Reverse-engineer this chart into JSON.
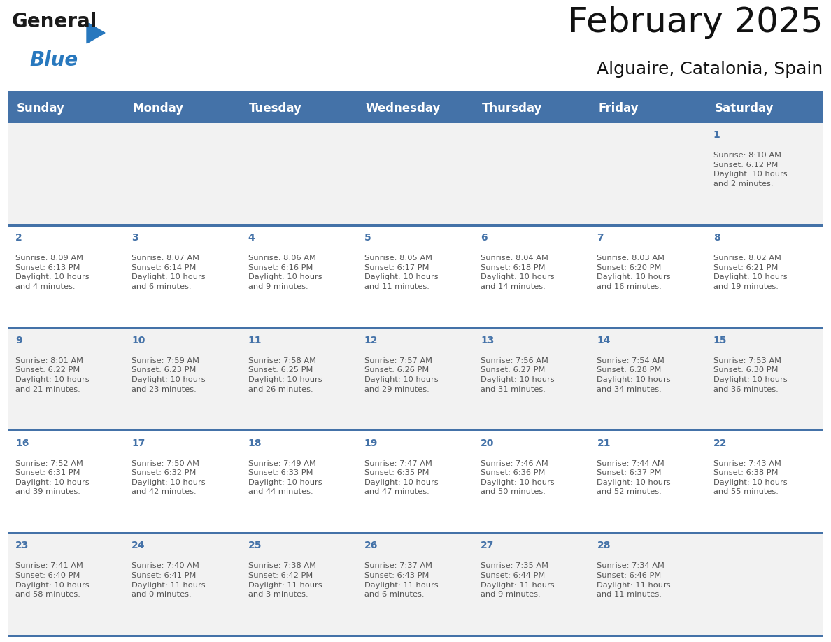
{
  "title": "February 2025",
  "subtitle": "Alguaire, Catalonia, Spain",
  "header_bg": "#4472A8",
  "header_text_color": "#FFFFFF",
  "cell_bg_odd": "#F2F2F2",
  "cell_bg_even": "#FFFFFF",
  "day_number_color": "#4472A8",
  "info_text_color": "#555555",
  "separator_color": "#4472A8",
  "days_of_week": [
    "Sunday",
    "Monday",
    "Tuesday",
    "Wednesday",
    "Thursday",
    "Friday",
    "Saturday"
  ],
  "weeks": [
    [
      {
        "day": "",
        "info": ""
      },
      {
        "day": "",
        "info": ""
      },
      {
        "day": "",
        "info": ""
      },
      {
        "day": "",
        "info": ""
      },
      {
        "day": "",
        "info": ""
      },
      {
        "day": "",
        "info": ""
      },
      {
        "day": "1",
        "info": "Sunrise: 8:10 AM\nSunset: 6:12 PM\nDaylight: 10 hours\nand 2 minutes."
      }
    ],
    [
      {
        "day": "2",
        "info": "Sunrise: 8:09 AM\nSunset: 6:13 PM\nDaylight: 10 hours\nand 4 minutes."
      },
      {
        "day": "3",
        "info": "Sunrise: 8:07 AM\nSunset: 6:14 PM\nDaylight: 10 hours\nand 6 minutes."
      },
      {
        "day": "4",
        "info": "Sunrise: 8:06 AM\nSunset: 6:16 PM\nDaylight: 10 hours\nand 9 minutes."
      },
      {
        "day": "5",
        "info": "Sunrise: 8:05 AM\nSunset: 6:17 PM\nDaylight: 10 hours\nand 11 minutes."
      },
      {
        "day": "6",
        "info": "Sunrise: 8:04 AM\nSunset: 6:18 PM\nDaylight: 10 hours\nand 14 minutes."
      },
      {
        "day": "7",
        "info": "Sunrise: 8:03 AM\nSunset: 6:20 PM\nDaylight: 10 hours\nand 16 minutes."
      },
      {
        "day": "8",
        "info": "Sunrise: 8:02 AM\nSunset: 6:21 PM\nDaylight: 10 hours\nand 19 minutes."
      }
    ],
    [
      {
        "day": "9",
        "info": "Sunrise: 8:01 AM\nSunset: 6:22 PM\nDaylight: 10 hours\nand 21 minutes."
      },
      {
        "day": "10",
        "info": "Sunrise: 7:59 AM\nSunset: 6:23 PM\nDaylight: 10 hours\nand 23 minutes."
      },
      {
        "day": "11",
        "info": "Sunrise: 7:58 AM\nSunset: 6:25 PM\nDaylight: 10 hours\nand 26 minutes."
      },
      {
        "day": "12",
        "info": "Sunrise: 7:57 AM\nSunset: 6:26 PM\nDaylight: 10 hours\nand 29 minutes."
      },
      {
        "day": "13",
        "info": "Sunrise: 7:56 AM\nSunset: 6:27 PM\nDaylight: 10 hours\nand 31 minutes."
      },
      {
        "day": "14",
        "info": "Sunrise: 7:54 AM\nSunset: 6:28 PM\nDaylight: 10 hours\nand 34 minutes."
      },
      {
        "day": "15",
        "info": "Sunrise: 7:53 AM\nSunset: 6:30 PM\nDaylight: 10 hours\nand 36 minutes."
      }
    ],
    [
      {
        "day": "16",
        "info": "Sunrise: 7:52 AM\nSunset: 6:31 PM\nDaylight: 10 hours\nand 39 minutes."
      },
      {
        "day": "17",
        "info": "Sunrise: 7:50 AM\nSunset: 6:32 PM\nDaylight: 10 hours\nand 42 minutes."
      },
      {
        "day": "18",
        "info": "Sunrise: 7:49 AM\nSunset: 6:33 PM\nDaylight: 10 hours\nand 44 minutes."
      },
      {
        "day": "19",
        "info": "Sunrise: 7:47 AM\nSunset: 6:35 PM\nDaylight: 10 hours\nand 47 minutes."
      },
      {
        "day": "20",
        "info": "Sunrise: 7:46 AM\nSunset: 6:36 PM\nDaylight: 10 hours\nand 50 minutes."
      },
      {
        "day": "21",
        "info": "Sunrise: 7:44 AM\nSunset: 6:37 PM\nDaylight: 10 hours\nand 52 minutes."
      },
      {
        "day": "22",
        "info": "Sunrise: 7:43 AM\nSunset: 6:38 PM\nDaylight: 10 hours\nand 55 minutes."
      }
    ],
    [
      {
        "day": "23",
        "info": "Sunrise: 7:41 AM\nSunset: 6:40 PM\nDaylight: 10 hours\nand 58 minutes."
      },
      {
        "day": "24",
        "info": "Sunrise: 7:40 AM\nSunset: 6:41 PM\nDaylight: 11 hours\nand 0 minutes."
      },
      {
        "day": "25",
        "info": "Sunrise: 7:38 AM\nSunset: 6:42 PM\nDaylight: 11 hours\nand 3 minutes."
      },
      {
        "day": "26",
        "info": "Sunrise: 7:37 AM\nSunset: 6:43 PM\nDaylight: 11 hours\nand 6 minutes."
      },
      {
        "day": "27",
        "info": "Sunrise: 7:35 AM\nSunset: 6:44 PM\nDaylight: 11 hours\nand 9 minutes."
      },
      {
        "day": "28",
        "info": "Sunrise: 7:34 AM\nSunset: 6:46 PM\nDaylight: 11 hours\nand 11 minutes."
      },
      {
        "day": "",
        "info": ""
      }
    ]
  ],
  "logo_general_color": "#1a1a1a",
  "logo_blue_color": "#2878BE",
  "logo_triangle_color": "#2878BE",
  "title_fontsize": 36,
  "subtitle_fontsize": 18,
  "header_fontsize": 12,
  "day_num_fontsize": 10,
  "info_fontsize": 8.2
}
